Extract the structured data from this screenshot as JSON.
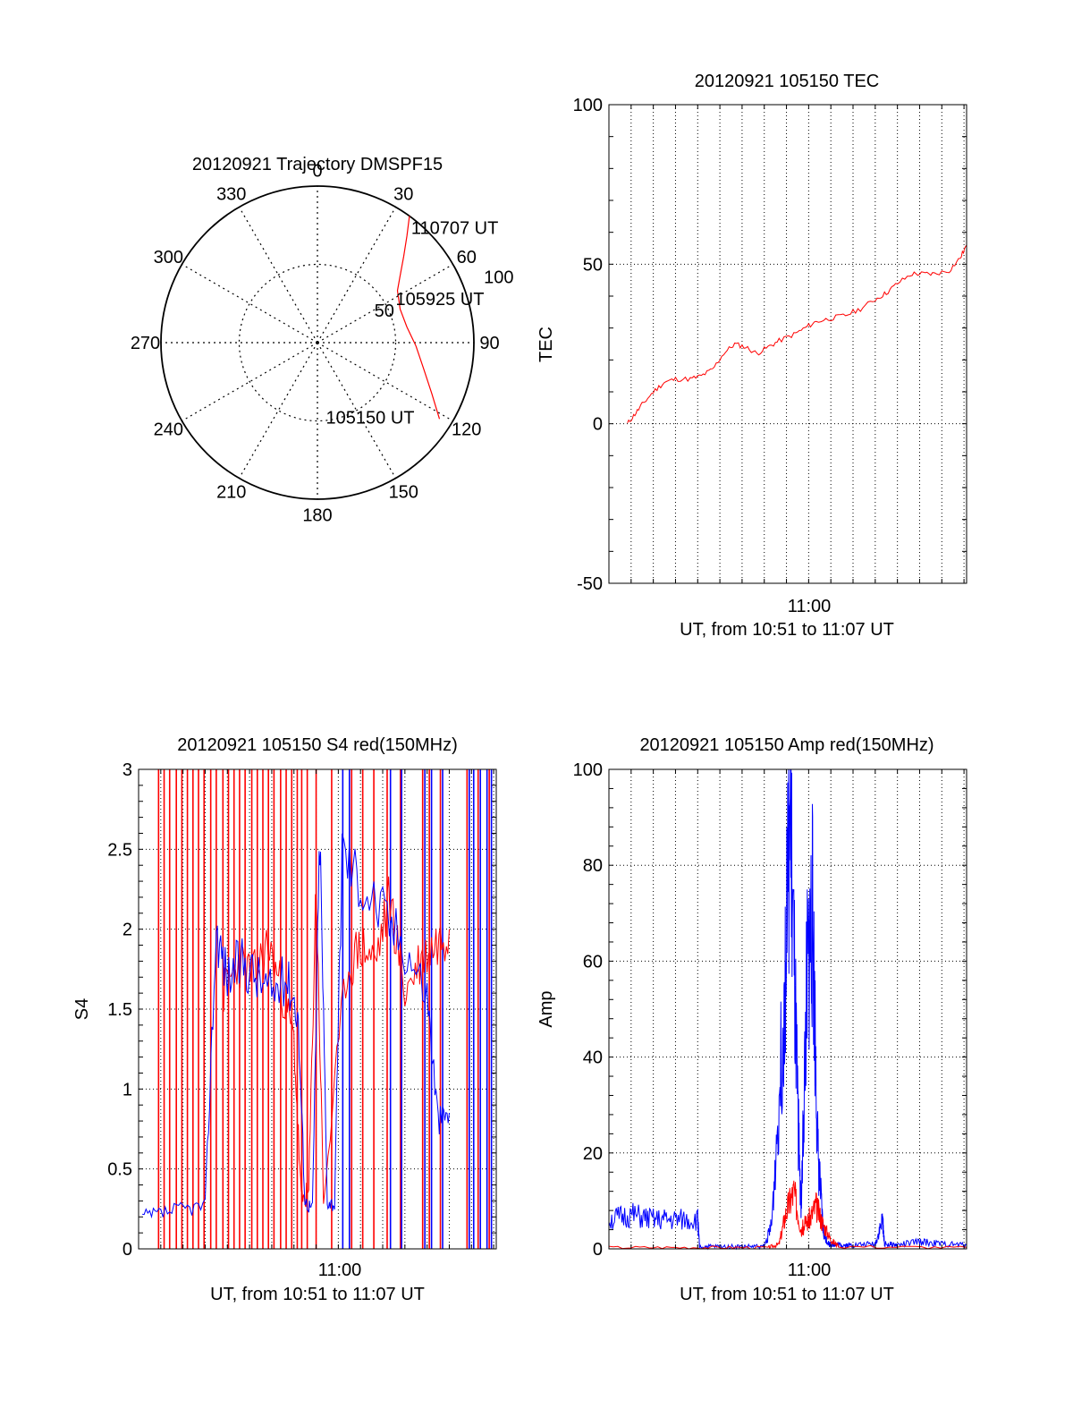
{
  "colors": {
    "red": "#ff0000",
    "blue": "#0000ff",
    "axis": "#000000",
    "grid": "#000000"
  },
  "chart_data": [
    {
      "id": "trajectory",
      "type": "polar",
      "title": "20120921 Trajectory DMSPF15",
      "angle_labels": [
        "0",
        "30",
        "60",
        "90",
        "120",
        "150",
        "180",
        "210",
        "240",
        "270",
        "300",
        "330"
      ],
      "radius_labels": [
        "50",
        "100"
      ],
      "rlim": [
        0,
        100
      ],
      "grid": true,
      "trajectory": {
        "color": "red",
        "points": [
          [
            122,
            92
          ],
          [
            114,
            80
          ],
          [
            104,
            70
          ],
          [
            92,
            63
          ],
          [
            80,
            58
          ],
          [
            68,
            57
          ],
          [
            57,
            61
          ],
          [
            51,
            68
          ],
          [
            45,
            78
          ],
          [
            40,
            89
          ],
          [
            36,
            100
          ]
        ]
      },
      "annotations": [
        {
          "text": "110707 UT",
          "point": [
            36,
            100
          ]
        },
        {
          "text": "105925 UT",
          "point": [
            57,
            61
          ]
        },
        {
          "text": "105150 UT",
          "point": [
            122,
            92
          ]
        }
      ]
    },
    {
      "id": "tec",
      "type": "line",
      "title": "20120921 105150 TEC",
      "xlabel": "UT, from 10:51 to 11:07 UT",
      "ylabel": "TEC",
      "xlim": [
        "10:51:00",
        "11:07:07"
      ],
      "ylim": [
        -50,
        100
      ],
      "yticks": [
        "-50",
        "0",
        "50",
        "100"
      ],
      "xticks": [
        "11:00"
      ],
      "grid": true,
      "series": [
        {
          "color": "red",
          "x": [
            "10:51:50",
            "10:52:10",
            "10:52:30",
            "10:53:00",
            "10:53:30",
            "10:54:00",
            "10:54:40",
            "10:55:10",
            "10:55:40",
            "10:56:10",
            "10:56:40",
            "10:57:10",
            "10:57:40",
            "10:58:10",
            "10:58:40",
            "10:59:20",
            "10:59:50",
            "11:00:20",
            "11:01:00",
            "11:01:40",
            "11:02:20",
            "11:03:00",
            "11:03:30",
            "11:04:00",
            "11:04:40",
            "11:05:10",
            "11:05:40",
            "11:06:20",
            "11:06:50",
            "11:07:07"
          ],
          "values": [
            0,
            3,
            6,
            10,
            13,
            14,
            14,
            15,
            17,
            22,
            25,
            24,
            22,
            24,
            26,
            28,
            30,
            32,
            33,
            34,
            36,
            39,
            41,
            44,
            47,
            47,
            47,
            48,
            52,
            56
          ]
        }
      ]
    },
    {
      "id": "s4",
      "type": "line",
      "title": "20120921 105150 S4 red(150MHz)",
      "xlabel": "UT, from 10:51 to 11:07 UT",
      "ylabel": "S4",
      "xlim": [
        "10:51:00",
        "11:07:07"
      ],
      "ylim": [
        0,
        3
      ],
      "yticks": [
        "0",
        "0.5",
        "1",
        "1.5",
        "2",
        "2.5",
        "3"
      ],
      "xticks": [
        "11:00"
      ],
      "grid": true,
      "series": [
        {
          "color": "red",
          "spike_minutes": [
            0.9,
            1.15,
            1.4,
            1.7,
            1.95,
            2.2,
            2.45,
            2.7,
            2.95,
            3.25,
            3.5,
            3.8,
            4.05,
            4.3,
            4.55,
            4.8,
            5.1,
            5.35,
            5.6,
            5.85,
            6.1,
            6.4,
            6.65,
            6.9,
            7.15,
            7.35,
            7.6,
            8.0,
            8.7,
            9.6,
            10.1,
            10.6,
            11.2,
            11.8,
            12.8,
            13.1,
            13.6,
            14.8,
            15.3,
            15.8
          ],
          "x": [
            "10:54:50",
            "10:55:30",
            "10:56:10",
            "10:56:50",
            "10:57:30",
            "10:58:00",
            "10:58:20",
            "10:58:40",
            "10:59:00",
            "10:59:20",
            "11:00:20",
            "11:01:00",
            "11:01:40",
            "11:02:20",
            "11:03:00",
            "11:03:40",
            "11:04:20",
            "11:05:00"
          ],
          "values": [
            1.6,
            1.8,
            1.7,
            1.9,
            1.6,
            1.3,
            0.3,
            0.35,
            2.3,
            0.3,
            1.7,
            1.9,
            1.8,
            2.2,
            1.6,
            1.8,
            1.9,
            2.0
          ]
        },
        {
          "color": "blue",
          "spike_minutes": [
            9.2,
            9.5,
            11.35,
            11.85,
            12.9,
            13.2,
            13.7,
            14.9,
            15.1,
            15.4,
            15.7,
            15.9
          ],
          "x": [
            "10:51:10",
            "10:52:00",
            "10:53:00",
            "10:54:00",
            "10:54:30",
            "10:55:00",
            "10:55:40",
            "10:56:20",
            "10:57:00",
            "10:57:40",
            "10:58:10",
            "10:58:30",
            "10:58:50",
            "10:59:10",
            "10:59:30",
            "10:59:50",
            "11:00:10",
            "11:01:00",
            "11:02:00",
            "11:03:00",
            "11:04:00",
            "11:04:30",
            "11:05:00"
          ],
          "values": [
            0.2,
            0.22,
            0.25,
            0.27,
            2.0,
            1.7,
            1.8,
            1.7,
            1.6,
            1.7,
            1.5,
            0.3,
            0.25,
            2.6,
            0.3,
            0.28,
            2.5,
            2.3,
            2.1,
            1.9,
            1.6,
            0.8,
            0.85
          ]
        }
      ]
    },
    {
      "id": "amp",
      "type": "line",
      "title": "20120921 105150 Amp red(150MHz)",
      "xlabel": "UT, from 10:51 to 11:07 UT",
      "ylabel": "Amp",
      "xlim": [
        "10:51:00",
        "11:07:07"
      ],
      "ylim": [
        0,
        100
      ],
      "yticks": [
        "0",
        "20",
        "40",
        "60",
        "80",
        "100"
      ],
      "xticks": [
        "11:00"
      ],
      "grid": true,
      "series": [
        {
          "color": "blue",
          "x": [
            "10:51:00",
            "10:52:00",
            "10:53:00",
            "10:54:00",
            "10:55:00",
            "10:55:05",
            "10:56:00",
            "10:57:00",
            "10:58:00",
            "10:58:20",
            "10:58:50",
            "10:59:10",
            "10:59:30",
            "10:59:40",
            "10:59:55",
            "11:00:10",
            "11:00:25",
            "11:00:40",
            "11:00:55",
            "11:01:10",
            "11:01:30",
            "11:02:00",
            "11:03:00",
            "11:03:20",
            "11:03:25",
            "11:04:00",
            "11:05:00",
            "11:06:00",
            "11:07:07"
          ],
          "values": [
            6,
            7,
            6,
            6,
            6,
            0.5,
            0.5,
            0.5,
            0.5,
            5,
            45,
            90,
            30,
            8,
            55,
            70,
            20,
            3,
            1,
            1,
            0.8,
            0.8,
            1,
            6,
            1,
            0.8,
            1.5,
            1,
            0.8
          ]
        },
        {
          "color": "red",
          "x": [
            "10:51:00",
            "10:55:00",
            "10:58:10",
            "10:58:40",
            "10:59:00",
            "10:59:20",
            "10:59:40",
            "11:00:00",
            "11:00:20",
            "11:00:40",
            "11:01:00",
            "11:01:20",
            "11:07:07"
          ],
          "values": [
            0.3,
            0.3,
            0.3,
            1,
            8,
            12,
            4,
            6,
            9,
            5,
            2,
            0.5,
            0.3
          ]
        }
      ]
    }
  ]
}
